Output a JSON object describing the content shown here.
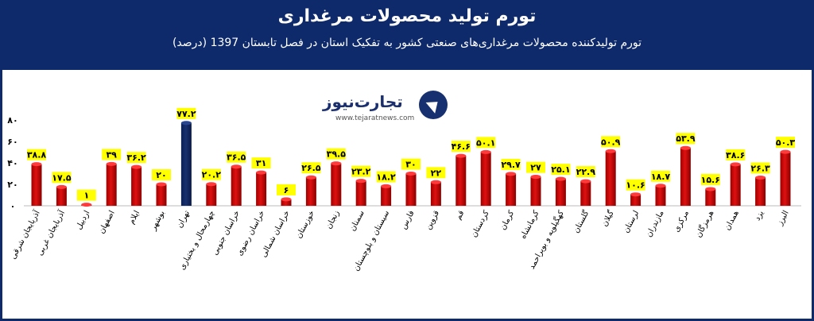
{
  "header": {
    "title": "تورم تولید محصولات مرغداری",
    "subtitle": "تورم تولیدکننده محصولات مرغداری‌های صنعتی کشور به تفکیک استان در فصل تابستان 1397 (درصد)"
  },
  "logo": {
    "brand": "تجارت‌نیوز",
    "site": "www.tejaratnews.com"
  },
  "colors": {
    "bar": "#e01010",
    "highlight": "#17306f",
    "label_bg": "#ffff00",
    "frame": "#0e2a6b"
  },
  "chart_data": {
    "type": "bar",
    "title": "تورم تولید محصولات مرغداری",
    "subtitle": "تورم تولیدکننده محصولات مرغداری‌های صنعتی کشور به تفکیک استان در فصل تابستان 1397 (درصد)",
    "ylim": [
      0,
      80
    ],
    "yticks": [
      0,
      20,
      40,
      60,
      80
    ],
    "ytick_labels": [
      "۰",
      "۲۰",
      "۴۰",
      "۶۰",
      "۸۰"
    ],
    "grid": false,
    "categories": [
      "آذربایجان شرقی",
      "آذربایجان غربی",
      "اردبیل",
      "اصفهان",
      "ایلام",
      "بوشهر",
      "تهران",
      "چهارمحال و بختیاری",
      "خراسان جنوبی",
      "خراسان رضوی",
      "خراسان شمالی",
      "خوزستان",
      "زنجان",
      "سمنان",
      "سیستان و بلوچستان",
      "فارس",
      "قزوین",
      "قم",
      "کردستان",
      "کرمان",
      "کرمانشاه",
      "کهگیلویه و بویراحمد",
      "گلستان",
      "گیلان",
      "لرستان",
      "مازندران",
      "مرکزی",
      "هرمزگان",
      "همدان",
      "یزد",
      "البرز"
    ],
    "values": [
      38.8,
      17.5,
      1,
      39,
      36.2,
      20,
      77.2,
      20.2,
      36.5,
      31,
      6,
      26.5,
      39.5,
      23.2,
      18.2,
      30,
      22,
      46.6,
      50.1,
      29.7,
      27,
      25.1,
      22.9,
      50.9,
      10.6,
      18.7,
      53.9,
      15.6,
      38.6,
      26.3,
      50.3
    ],
    "value_labels": [
      "۳۸.۸",
      "۱۷.۵",
      "۱",
      "۳۹",
      "۳۶.۲",
      "۲۰",
      "۷۷.۲",
      "۲۰.۲",
      "۳۶.۵",
      "۳۱",
      "۶",
      "۲۶.۵",
      "۳۹.۵",
      "۲۳.۲",
      "۱۸.۲",
      "۳۰",
      "۲۲",
      "۴۶.۶",
      "۵۰.۱",
      "۲۹.۷",
      "۲۷",
      "۲۵.۱",
      "۲۲.۹",
      "۵۰.۹",
      "۱۰.۶",
      "۱۸.۷",
      "۵۳.۹",
      "۱۵.۶",
      "۳۸.۶",
      "۲۶.۳",
      "۵۰.۳"
    ],
    "highlight_category": "تهران"
  }
}
